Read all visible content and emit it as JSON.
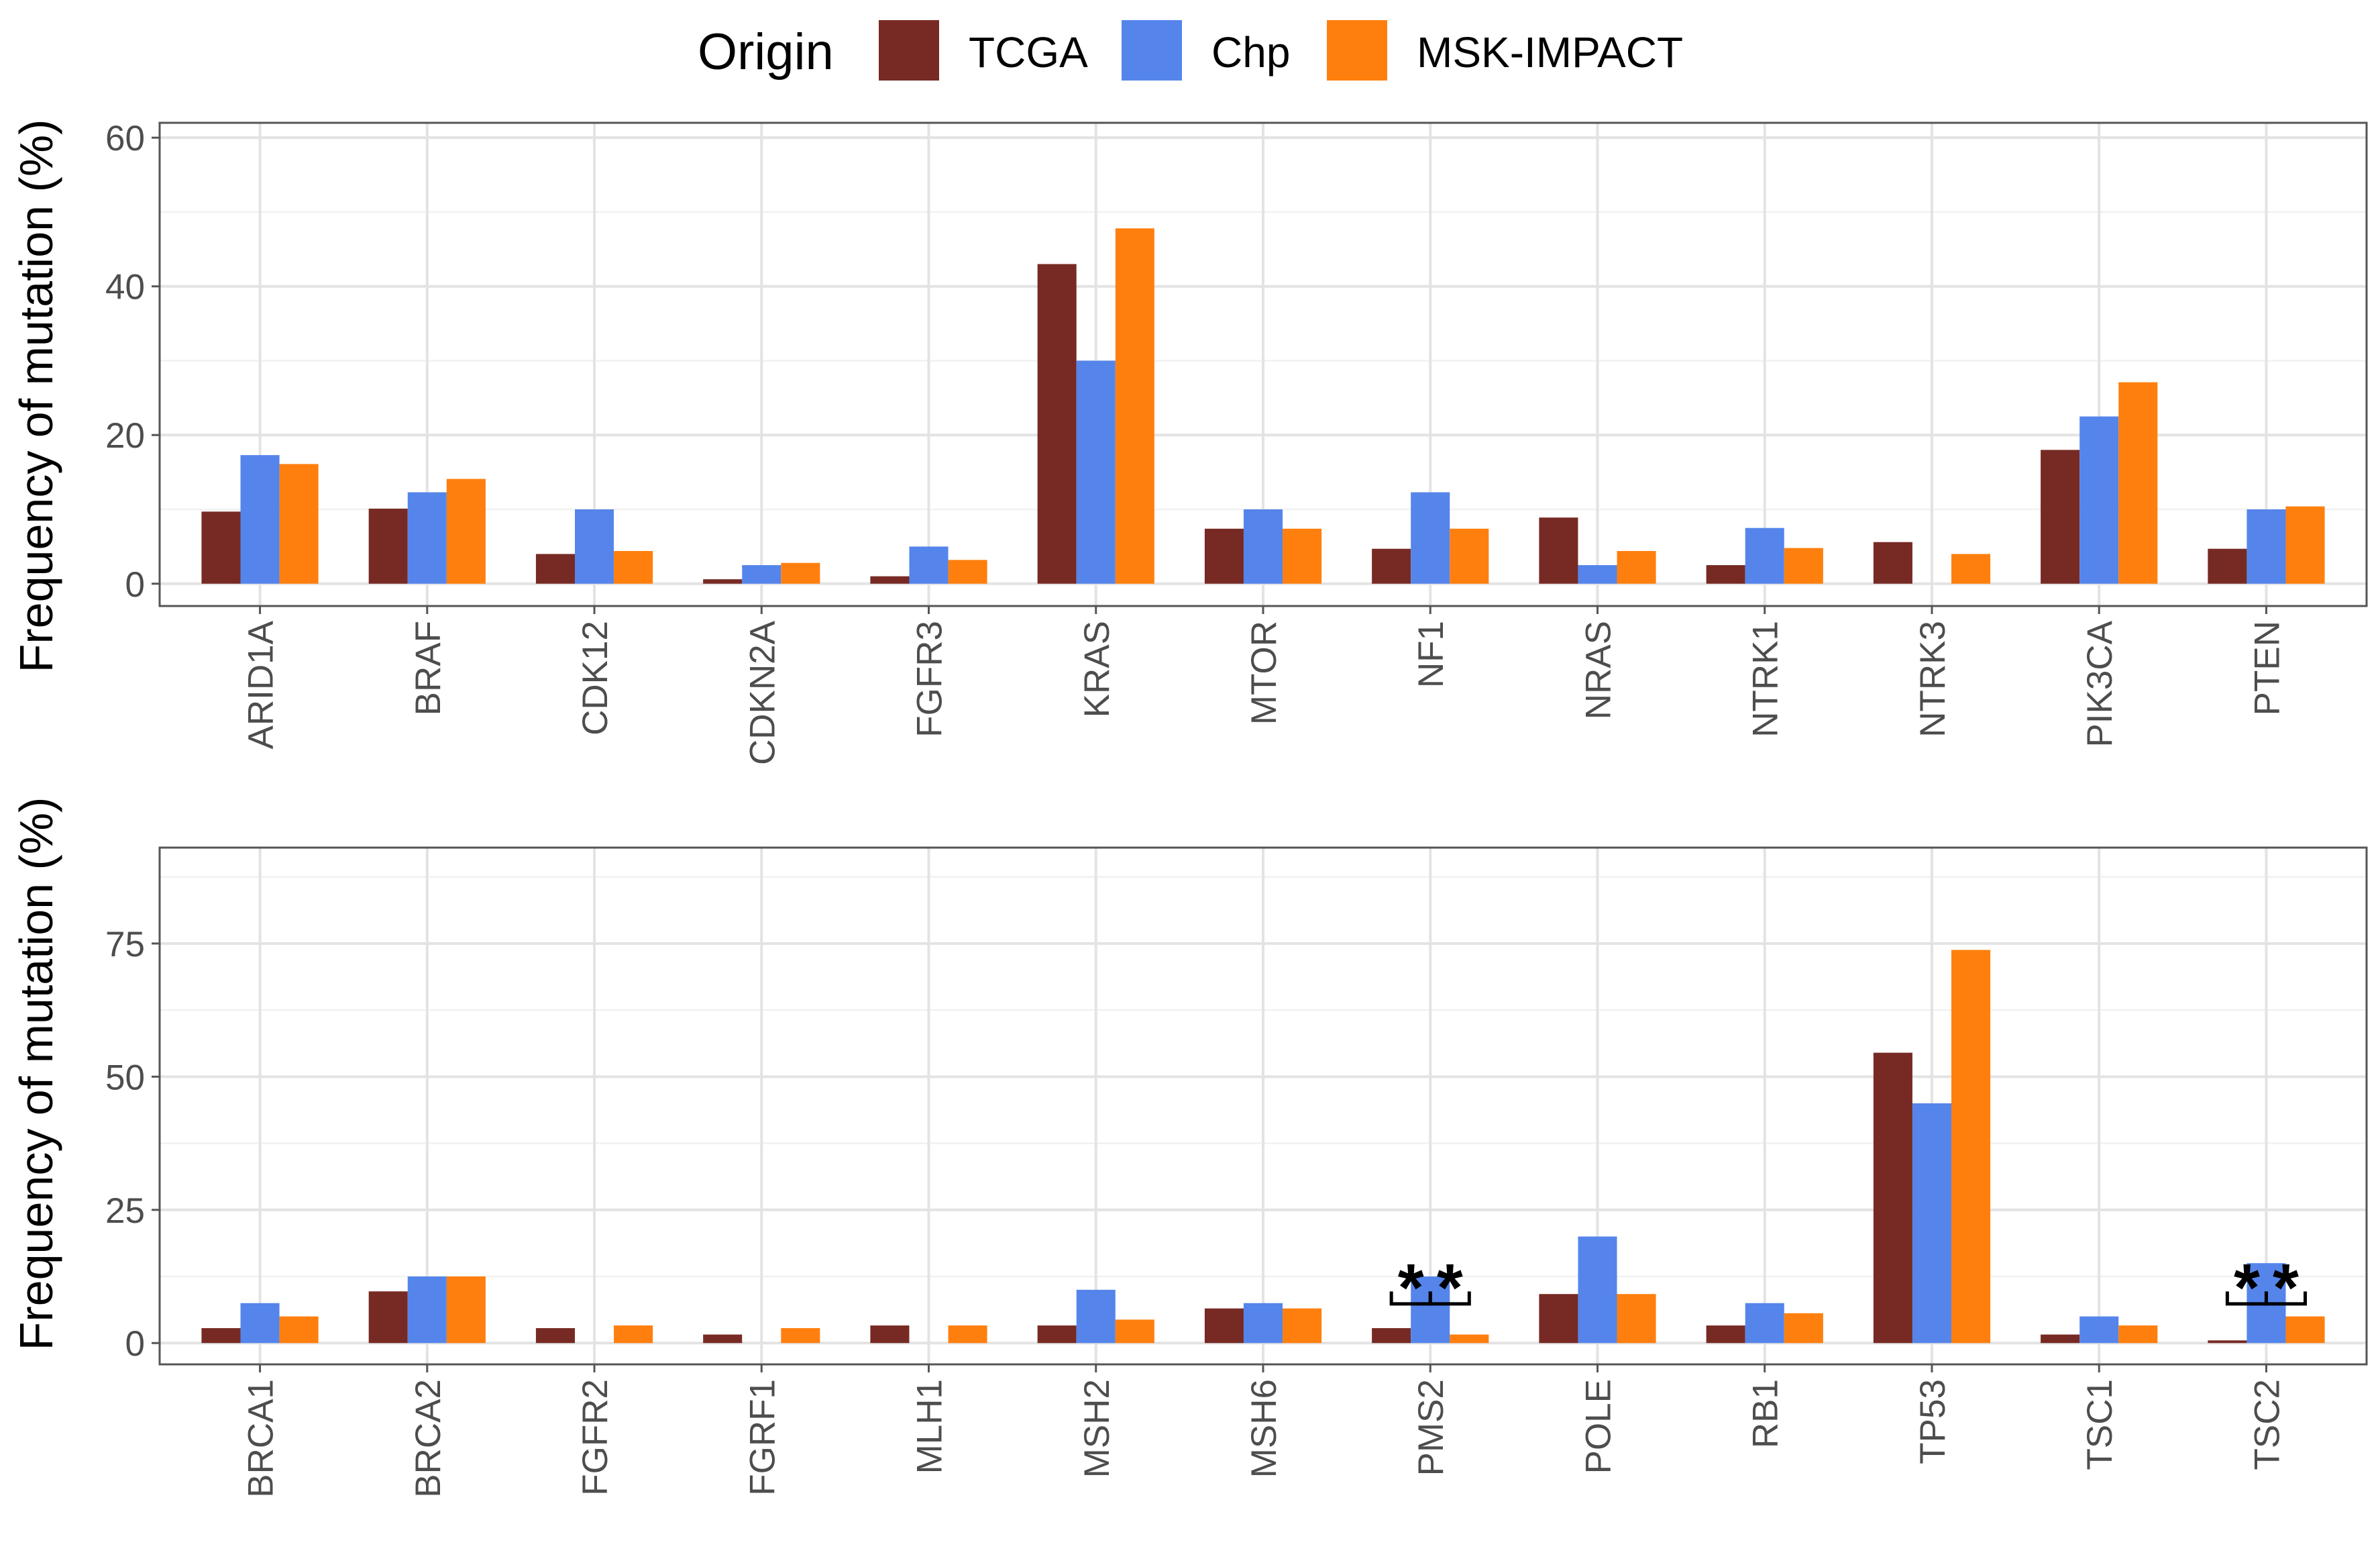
{
  "legend": {
    "title": "Origin",
    "entries": [
      {
        "name": "TCGA",
        "color": "#772A24"
      },
      {
        "name": "Chp",
        "color": "#5585EB"
      },
      {
        "name": "MSK-IMPACT",
        "color": "#FF7F0E"
      }
    ]
  },
  "chart_data": [
    {
      "type": "bar",
      "ylabel": "Frequency of mutation (%)",
      "xlabel": "",
      "ylim": [
        -3,
        62
      ],
      "yticks": [
        0,
        20,
        40,
        60
      ],
      "minor_yticks": [
        10,
        30,
        50
      ],
      "categories": [
        "ARID1A",
        "BRAF",
        "CDK12",
        "CDKN2A",
        "FGFR3",
        "KRAS",
        "MTOR",
        "NF1",
        "NRAS",
        "NTRK1",
        "NTRK3",
        "PIK3CA",
        "PTEN"
      ],
      "series": [
        {
          "name": "TCGA",
          "values": [
            9.7,
            10.1,
            4.0,
            0.6,
            1.0,
            43.0,
            7.4,
            4.7,
            8.9,
            2.5,
            5.6,
            18.0,
            4.7
          ]
        },
        {
          "name": "Chp",
          "values": [
            17.3,
            12.3,
            10.0,
            2.5,
            5.0,
            30.0,
            10.0,
            12.3,
            2.5,
            7.5,
            0,
            22.5,
            10.0
          ]
        },
        {
          "name": "MSK-IMPACT",
          "values": [
            16.1,
            14.1,
            4.4,
            2.8,
            3.2,
            47.8,
            7.4,
            7.4,
            4.4,
            4.8,
            4.0,
            27.1,
            10.4
          ]
        }
      ],
      "annotations": []
    },
    {
      "type": "bar",
      "ylabel": "Frequency of mutation (%)",
      "xlabel": "",
      "ylim": [
        -4,
        93
      ],
      "yticks": [
        0,
        25,
        50,
        75
      ],
      "minor_yticks": [
        12.5,
        37.5,
        62.5,
        87.5
      ],
      "categories": [
        "BRCA1",
        "BRCA2",
        "FGFR2",
        "FGRF1",
        "MLH1",
        "MSH2",
        "MSH6",
        "PMS2",
        "POLE",
        "RB1",
        "TP53",
        "TSC1",
        "TSC2"
      ],
      "series": [
        {
          "name": "TCGA",
          "values": [
            2.8,
            9.7,
            2.8,
            1.6,
            3.3,
            3.3,
            6.5,
            2.8,
            9.2,
            3.3,
            54.5,
            1.6,
            0.5
          ]
        },
        {
          "name": "Chp",
          "values": [
            7.5,
            12.5,
            0,
            0,
            0,
            10.0,
            7.5,
            12.5,
            20.0,
            7.5,
            45.0,
            5.0,
            15.0
          ]
        },
        {
          "name": "MSK-IMPACT",
          "values": [
            5.0,
            12.5,
            3.3,
            2.8,
            3.3,
            4.4,
            6.5,
            1.6,
            9.2,
            5.6,
            73.8,
            3.3,
            5.0
          ]
        }
      ],
      "annotations": [
        {
          "category": "PMS2",
          "from": "TCGA",
          "to": "Chp",
          "label": "*"
        },
        {
          "category": "PMS2",
          "from": "Chp",
          "to": "MSK-IMPACT",
          "label": "*"
        },
        {
          "category": "TSC2",
          "from": "TCGA",
          "to": "Chp",
          "label": "*"
        },
        {
          "category": "TSC2",
          "from": "Chp",
          "to": "MSK-IMPACT",
          "label": "*"
        }
      ]
    }
  ]
}
